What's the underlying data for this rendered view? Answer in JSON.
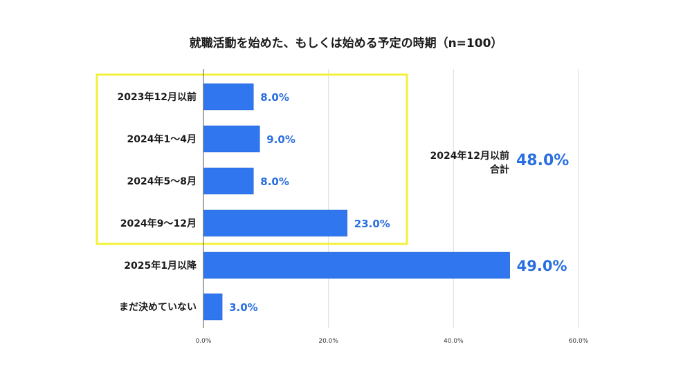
{
  "chart_data": {
    "type": "bar",
    "orientation": "horizontal",
    "title": "就職活動を始めた、もしくは始める予定の時期（n=100）",
    "categories": [
      "2023年12月以前",
      "2024年1～4月",
      "2024年5～8月",
      "2024年9～12月",
      "2025年1月以降",
      "まだ決めていない"
    ],
    "values": [
      8.0,
      9.0,
      8.0,
      23.0,
      49.0,
      3.0
    ],
    "value_labels": [
      "8.0%",
      "9.0%",
      "8.0%",
      "23.0%",
      "49.0%",
      "3.0%"
    ],
    "xlim": [
      0,
      60
    ],
    "xticks": [
      0,
      20,
      40,
      60
    ],
    "xtick_labels": [
      "0.0%",
      "20.0%",
      "40.0%",
      "60.0%"
    ],
    "grid": true,
    "highlight_group": [
      0,
      1,
      2,
      3
    ],
    "annotation": {
      "label_line1": "2024年12月以前",
      "label_line2": "合計",
      "value": "48.0%"
    },
    "colors": {
      "bar": "#3077ef",
      "value_text": "#2a6fe0",
      "highlight_box": "#f3f03a",
      "grid": "#dddddd"
    }
  }
}
